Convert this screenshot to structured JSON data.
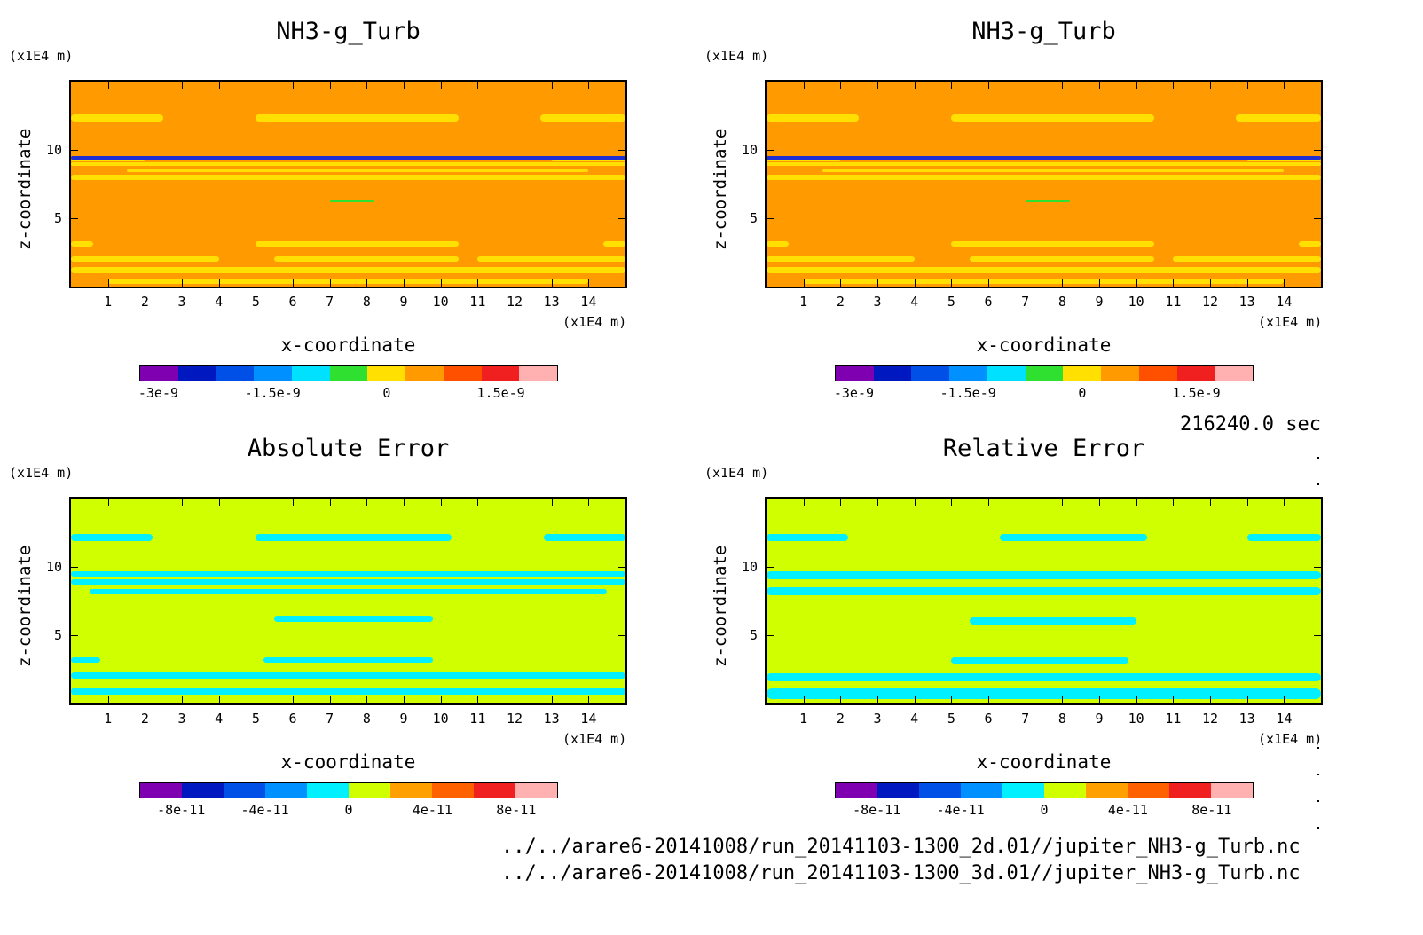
{
  "chart_data": [
    {
      "type": "heatmap",
      "title": "NH3-g_Turb",
      "xlabel": "x-coordinate",
      "ylabel": "z-coordinate",
      "x_unit": "(x1E4 m)",
      "y_unit": "(x1E4 m)",
      "xlim": [
        0,
        15
      ],
      "ylim": [
        0,
        15
      ],
      "x_ticks": [
        1,
        2,
        3,
        4,
        5,
        6,
        7,
        8,
        9,
        10,
        11,
        12,
        13,
        14
      ],
      "y_ticks": [
        5,
        10
      ],
      "background_level": "0 to 5e-10",
      "colorbar": {
        "labels": [
          "-3e-9",
          "-1.5e-9",
          "0",
          "1.5e-9"
        ],
        "colors": [
          "#7f00b0",
          "#0018c0",
          "#0050e8",
          "#0090ff",
          "#00e0ff",
          "#30e030",
          "#ffe000",
          "#ff9a00",
          "#ff5000",
          "#f02020",
          "#ffb0b0"
        ]
      }
    },
    {
      "type": "heatmap",
      "title": "NH3-g_Turb",
      "xlabel": "x-coordinate",
      "ylabel": "z-coordinate",
      "x_unit": "(x1E4 m)",
      "y_unit": "(x1E4 m)",
      "xlim": [
        0,
        15
      ],
      "ylim": [
        0,
        15
      ],
      "x_ticks": [
        1,
        2,
        3,
        4,
        5,
        6,
        7,
        8,
        9,
        10,
        11,
        12,
        13,
        14
      ],
      "y_ticks": [
        5,
        10
      ],
      "background_level": "0 to 5e-10",
      "colorbar": {
        "labels": [
          "-3e-9",
          "-1.5e-9",
          "0",
          "1.5e-9"
        ],
        "colors": [
          "#7f00b0",
          "#0018c0",
          "#0050e8",
          "#0090ff",
          "#00e0ff",
          "#30e030",
          "#ffe000",
          "#ff9a00",
          "#ff5000",
          "#f02020",
          "#ffb0b0"
        ]
      }
    },
    {
      "type": "heatmap",
      "title": "Absolute Error",
      "xlabel": "x-coordinate",
      "ylabel": "z-coordinate",
      "x_unit": "(x1E4 m)",
      "y_unit": "(x1E4 m)",
      "xlim": [
        0,
        15
      ],
      "ylim": [
        0,
        15
      ],
      "x_ticks": [
        1,
        2,
        3,
        4,
        5,
        6,
        7,
        8,
        9,
        10,
        11,
        12,
        13,
        14
      ],
      "y_ticks": [
        5,
        10
      ],
      "background_level": "0 to 2e-11",
      "colorbar": {
        "labels": [
          "-8e-11",
          "-4e-11",
          "0",
          "4e-11",
          "8e-11"
        ],
        "colors": [
          "#7f00b0",
          "#0018c0",
          "#0050e8",
          "#0090ff",
          "#00f0ff",
          "#d0ff00",
          "#ffa000",
          "#ff6000",
          "#f02020",
          "#ffb0b0"
        ]
      }
    },
    {
      "type": "heatmap",
      "title": "Relative Error",
      "xlabel": "x-coordinate",
      "ylabel": "z-coordinate",
      "x_unit": "(x1E4 m)",
      "y_unit": "(x1E4 m)",
      "xlim": [
        0,
        15
      ],
      "ylim": [
        0,
        15
      ],
      "x_ticks": [
        1,
        2,
        3,
        4,
        5,
        6,
        7,
        8,
        9,
        10,
        11,
        12,
        13,
        14
      ],
      "y_ticks": [
        5,
        10
      ],
      "background_level": "0 to 2e-11",
      "colorbar": {
        "labels": [
          "-8e-11",
          "-4e-11",
          "0",
          "4e-11",
          "8e-11"
        ],
        "colors": [
          "#7f00b0",
          "#0018c0",
          "#0050e8",
          "#0090ff",
          "#00f0ff",
          "#d0ff00",
          "#ffa000",
          "#ff6000",
          "#f02020",
          "#ffb0b0"
        ]
      }
    }
  ],
  "time_label": "216240.0 sec",
  "file_paths": [
    "../../arare6-20141008/run_20141103-1300_2d.01//jupiter_NH3-g_Turb.nc",
    "../../arare6-20141008/run_20141103-1300_3d.01//jupiter_NH3-g_Turb.nc"
  ]
}
